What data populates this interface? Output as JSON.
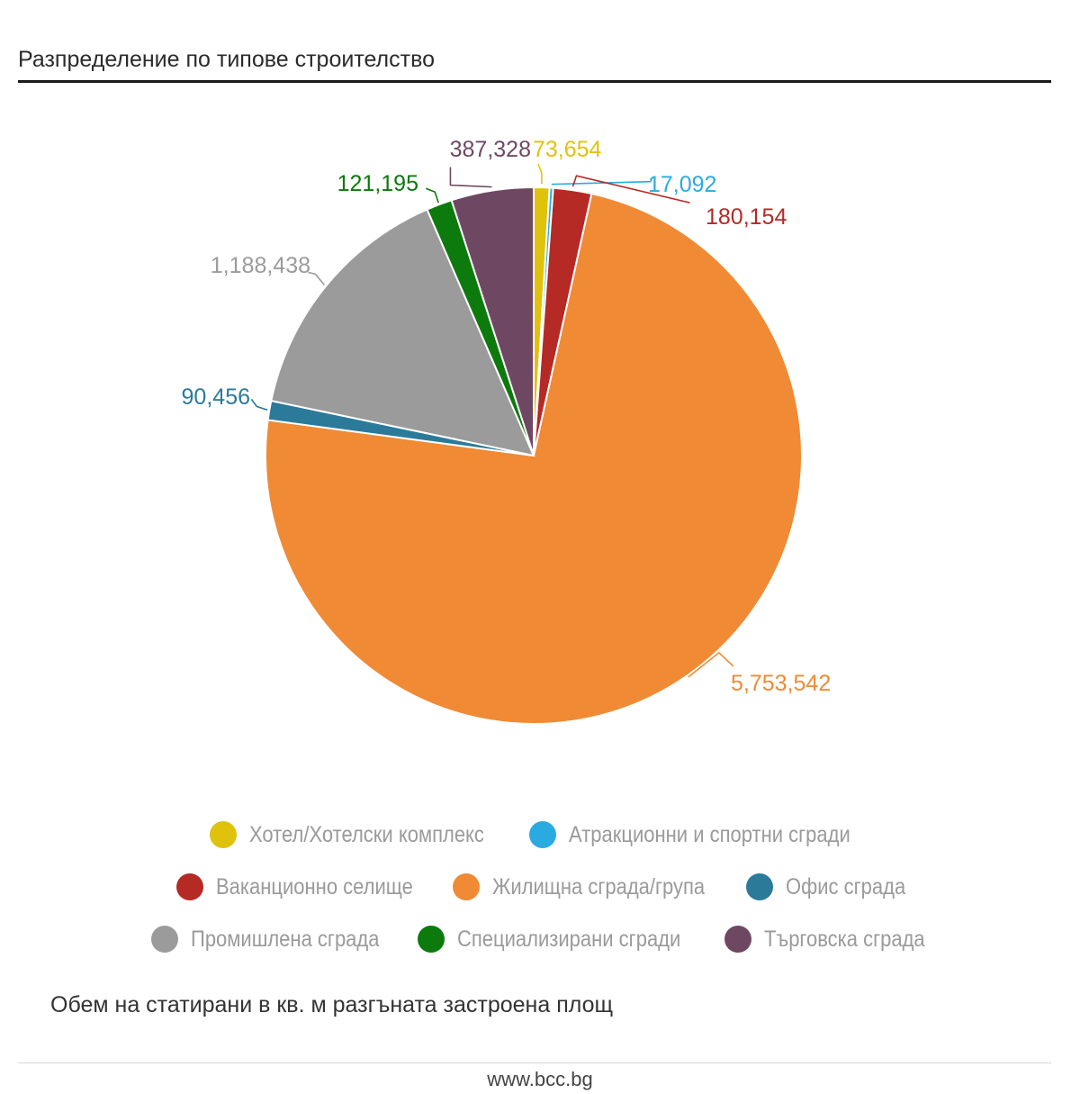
{
  "header": {
    "title": "Разпределение по типове строителство"
  },
  "chart_data": {
    "type": "pie",
    "title": "Разпределение по типове строителство",
    "series": [
      {
        "name": "Хотел/Хотелски комплекс",
        "value": 73654,
        "label": "73,654",
        "color": "#e0c20c"
      },
      {
        "name": "Атракционни и спортни сгради",
        "value": 17092,
        "label": "17,092",
        "color": "#29abe2"
      },
      {
        "name": "Ваканционно селище",
        "value": 180154,
        "label": "180,154",
        "color": "#b52a25"
      },
      {
        "name": "Жилищна сграда/група",
        "value": 5753542,
        "label": "5,753,542",
        "color": "#f08a35"
      },
      {
        "name": "Офис сграда",
        "value": 90456,
        "label": "90,456",
        "color": "#2b7a9a"
      },
      {
        "name": "Промишлена сграда",
        "value": 1188438,
        "label": "1,188,438",
        "color": "#9b9b9b"
      },
      {
        "name": "Специализирани сгради",
        "value": 121195,
        "label": "121,195",
        "color": "#0c7a0c"
      },
      {
        "name": "Търговска сграда",
        "value": 387328,
        "label": "387,328",
        "color": "#6e4862"
      }
    ],
    "legend_position": "bottom"
  },
  "legend": {
    "rows": [
      [
        {
          "label": "Хотел/Хотелски комплекс",
          "color": "#e0c20c"
        },
        {
          "label": "Атракционни и спортни сгради",
          "color": "#29abe2"
        }
      ],
      [
        {
          "label": "Ваканционно селище",
          "color": "#b52a25"
        },
        {
          "label": "Жилищна сграда/група",
          "color": "#f08a35"
        },
        {
          "label": "Офис сграда",
          "color": "#2b7a9a"
        }
      ],
      [
        {
          "label": "Промишлена сграда",
          "color": "#9b9b9b"
        },
        {
          "label": "Специализирани сгради",
          "color": "#0c7a0c"
        },
        {
          "label": "Търговска сграда",
          "color": "#6e4862"
        }
      ]
    ]
  },
  "subtitle": "Обем на статирани в кв. м разгъната застроена площ",
  "footer": {
    "source": "www.bcc.bg"
  }
}
